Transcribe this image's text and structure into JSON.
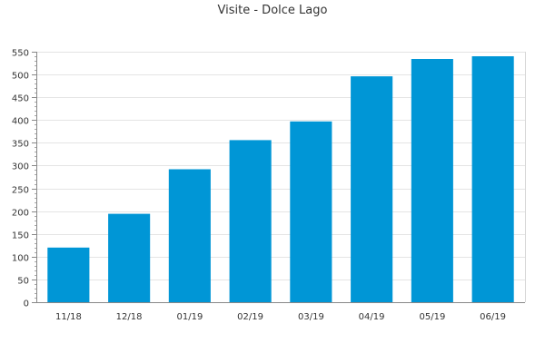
{
  "chart_data": {
    "type": "bar",
    "title": "Visite - Dolce Lago",
    "xlabel": "",
    "ylabel": "",
    "categories": [
      "11/18",
      "12/18",
      "01/19",
      "02/19",
      "03/19",
      "04/19",
      "05/19",
      "06/19"
    ],
    "values": [
      120,
      194,
      292,
      356,
      397,
      496,
      534,
      540
    ],
    "ylim": [
      0,
      550
    ],
    "yticks": [
      0,
      50,
      100,
      150,
      200,
      250,
      300,
      350,
      400,
      450,
      500,
      550
    ],
    "grid": true,
    "legend": "none",
    "bar_color": "#0096d6"
  }
}
